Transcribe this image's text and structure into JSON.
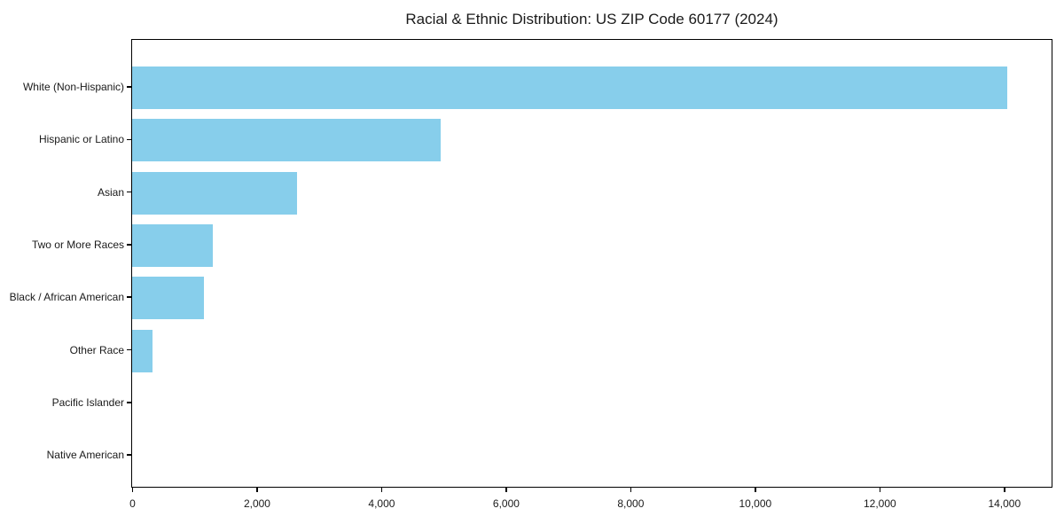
{
  "chart_data": {
    "type": "bar",
    "orientation": "horizontal",
    "title": "Racial & Ethnic Distribution: US ZIP Code 60177 (2024)",
    "categories": [
      "White (Non-Hispanic)",
      "Hispanic or Latino",
      "Asian",
      "Two or More Races",
      "Black / African American",
      "Other Race",
      "Pacific Islander",
      "Native American"
    ],
    "values": [
      14040,
      4950,
      2640,
      1290,
      1150,
      330,
      0,
      0
    ],
    "xlabel": "",
    "ylabel": "",
    "xlim": [
      0,
      14750
    ],
    "x_ticks": [
      0,
      2000,
      4000,
      6000,
      8000,
      10000,
      12000,
      14000
    ],
    "x_tick_labels": [
      "0",
      "2,000",
      "4,000",
      "6,000",
      "8,000",
      "10,000",
      "12,000",
      "14,000"
    ],
    "grid": false,
    "legend": false,
    "bar_color": "#87CEEB",
    "spine_color": "#000000",
    "text_color": "#1a1a1a",
    "background": "#ffffff"
  }
}
